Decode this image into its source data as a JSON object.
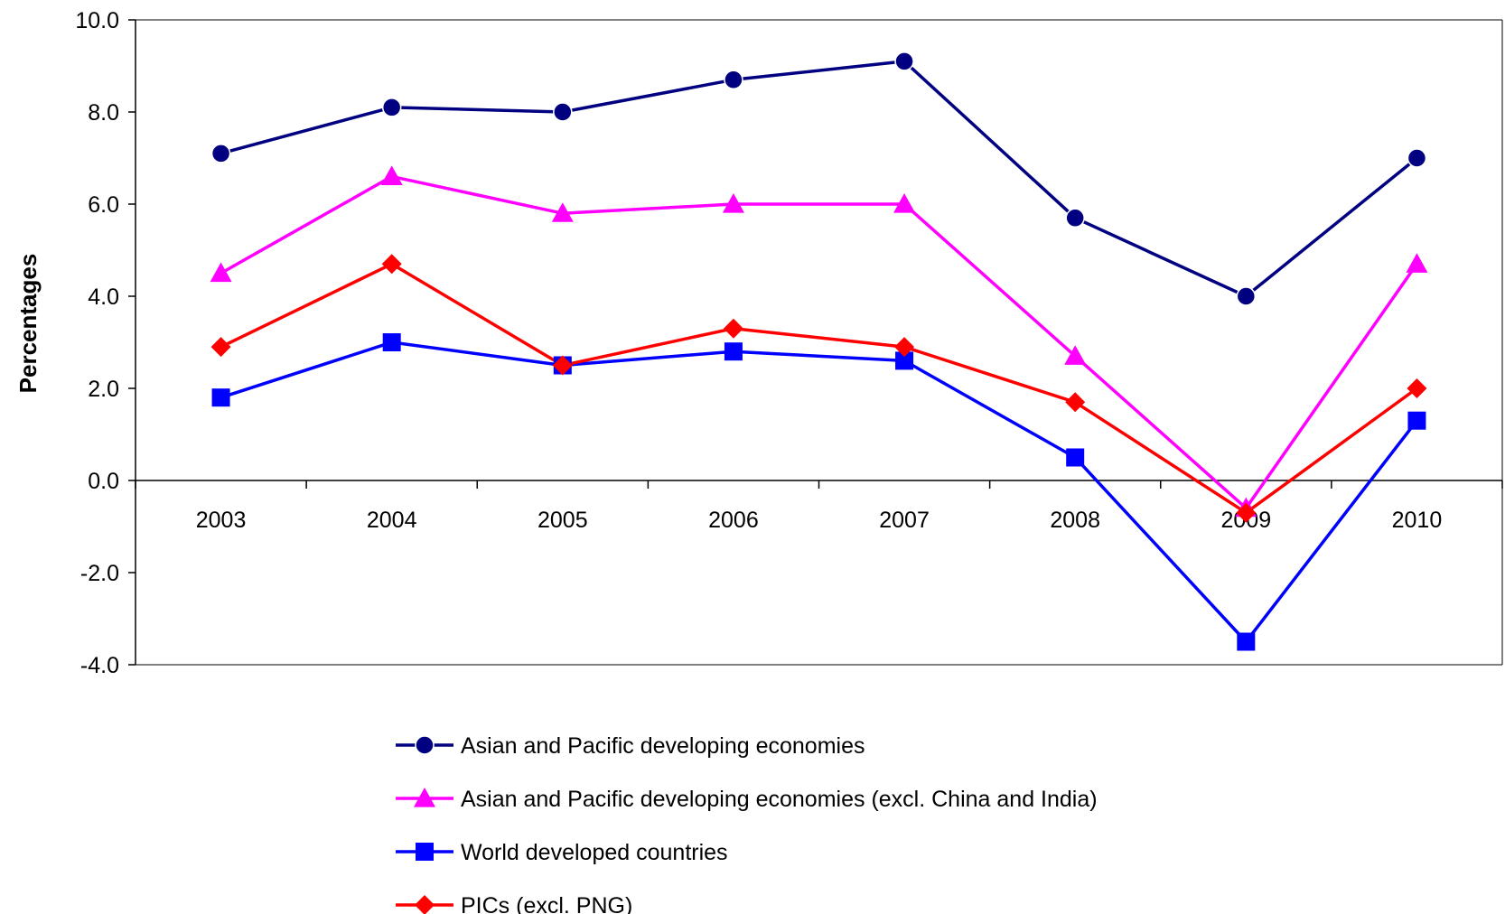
{
  "chart_data": {
    "type": "line",
    "title": "",
    "xlabel": "",
    "ylabel": "Percentages",
    "categories": [
      "2003",
      "2004",
      "2005",
      "2006",
      "2007",
      "2008",
      "2009",
      "2010"
    ],
    "y_ticks": [
      "10.0",
      "8.0",
      "6.0",
      "4.0",
      "2.0",
      "0.0",
      "-2.0",
      "-4.0"
    ],
    "ylim": [
      -4,
      10
    ],
    "grid": false,
    "legend_position": "bottom",
    "series": [
      {
        "name": "Asian and Pacific developing economies",
        "values": [
          7.1,
          8.1,
          8.0,
          8.7,
          9.1,
          5.7,
          4.0,
          7.0
        ],
        "color": "#000080",
        "marker": "circle"
      },
      {
        "name": "Asian and Pacific developing economies (excl. China and India)",
        "values": [
          4.5,
          6.6,
          5.8,
          6.0,
          6.0,
          2.7,
          -0.6,
          4.7
        ],
        "color": "#ff00ff",
        "marker": "triangle"
      },
      {
        "name": "World developed countries",
        "values": [
          1.8,
          3.0,
          2.5,
          2.8,
          2.6,
          0.5,
          -3.5,
          1.3
        ],
        "color": "#0000ff",
        "marker": "square"
      },
      {
        "name": "PICs (excl. PNG)",
        "values": [
          2.9,
          4.7,
          2.5,
          3.3,
          2.9,
          1.7,
          -0.7,
          2.0
        ],
        "color": "#ff0000",
        "marker": "diamond"
      }
    ]
  }
}
